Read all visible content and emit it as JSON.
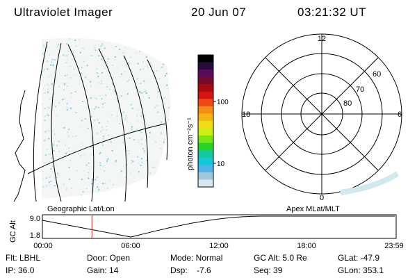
{
  "header": {
    "instrument": "Ultraviolet Imager",
    "date": "20 Jun 07",
    "time": "03:21:32 UT"
  },
  "colorbar": {
    "unit_label": "photon cm⁻²s⁻¹",
    "ticks": [
      "100",
      "10"
    ],
    "colors": [
      "#000000",
      "#2a0a3a",
      "#5a0a5a",
      "#7a0a2a",
      "#a80a14",
      "#d41414",
      "#f04a14",
      "#f58c14",
      "#f5b414",
      "#f0dc14",
      "#c8f014",
      "#78e614",
      "#28d228",
      "#14c8a0",
      "#14c8dc",
      "#50b4e6",
      "#a0c8dc",
      "#d8e8ee"
    ]
  },
  "polar_plot": {
    "top_label": "12",
    "bottom_label": "0",
    "left_label": "18",
    "right_label": "6",
    "lat_labels": [
      "60",
      "70",
      "80"
    ]
  },
  "timeline": {
    "left_title": "Geographic Lat/Lon",
    "right_title": "Apex MLat/MLT",
    "axis_label": "GC Alt",
    "y_ticks": [
      "9.0",
      "1.8"
    ],
    "x_ticks": [
      "00:00",
      "06:00",
      "12:00",
      "18:00",
      "23:59"
    ],
    "cursor_time_h": 3.36
  },
  "status": {
    "flt": "Flt: LBHL",
    "ip": "IP: 36.0",
    "door": "Door: Open",
    "gain": "Gain: 14",
    "mode": "Mode: Normal",
    "dsp": "Dsp:    -7.6",
    "gcalt": "GC Alt: 5.0 Re",
    "seq": "Seq: 39",
    "glat": "GLat: -47.9",
    "glon": "GLon: 353.1"
  }
}
